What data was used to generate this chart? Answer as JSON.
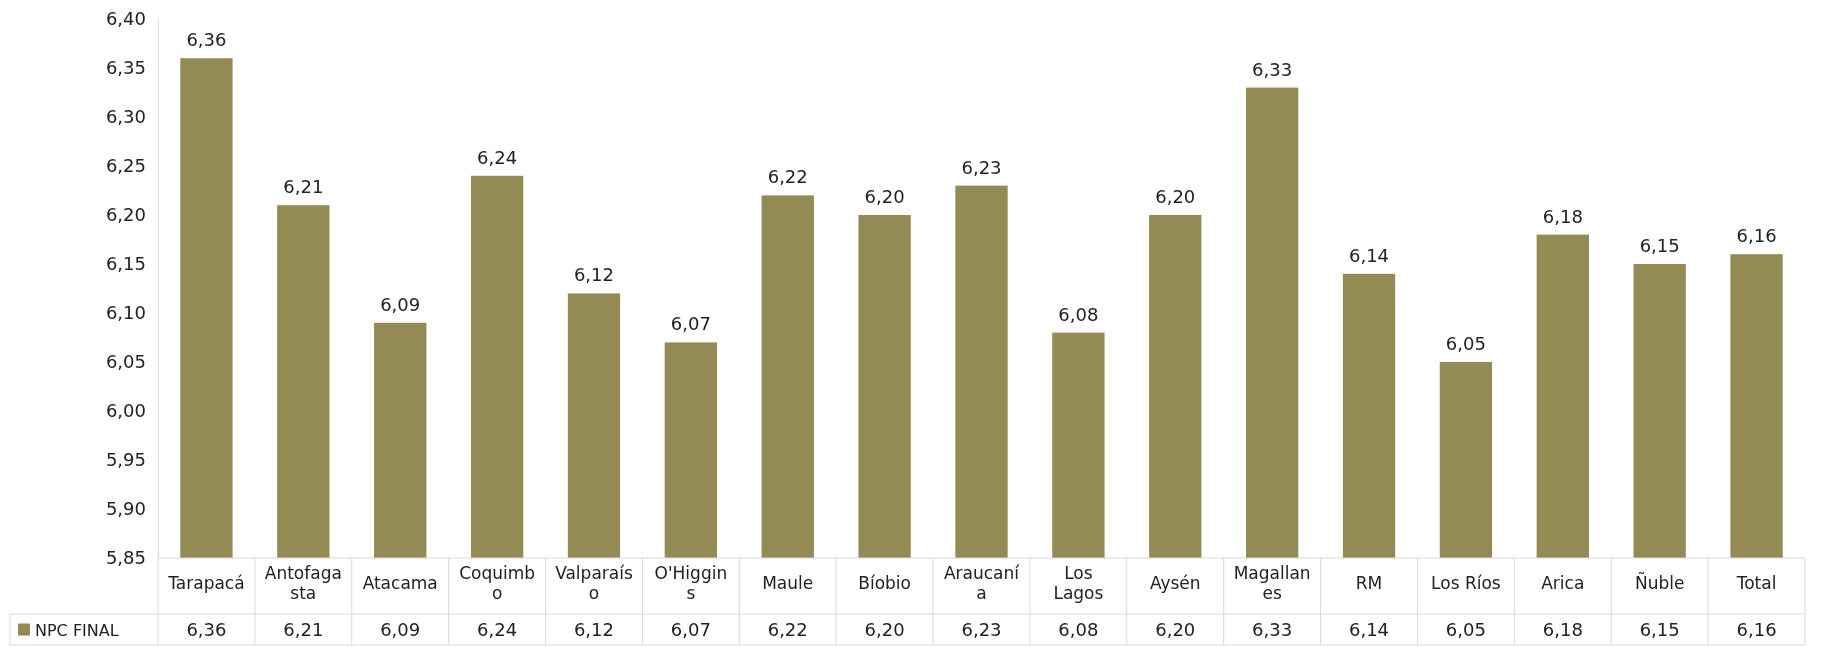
{
  "chart_data": {
    "type": "bar",
    "categories": [
      "Tarapacá",
      "Antofagasta",
      "Atacama",
      "Coquimbo",
      "Valparaíso",
      "O'Higgins",
      "Maule",
      "Bíobio",
      "Araucanía",
      "Los Lagos",
      "Aysén",
      "Magallanes",
      "RM",
      "Los Ríos",
      "Arica",
      "Ñuble",
      "Total"
    ],
    "series": [
      {
        "name": "NPC FINAL",
        "color": "#948a54",
        "values": [
          6.36,
          6.21,
          6.09,
          6.24,
          6.12,
          6.07,
          6.22,
          6.2,
          6.23,
          6.08,
          6.2,
          6.33,
          6.14,
          6.05,
          6.18,
          6.15,
          6.16
        ],
        "value_labels": [
          "6,36",
          "6,21",
          "6,09",
          "6,24",
          "6,12",
          "6,07",
          "6,22",
          "6,20",
          "6,23",
          "6,08",
          "6,20",
          "6,33",
          "6,14",
          "6,05",
          "6,18",
          "6,15",
          "6,16"
        ]
      }
    ],
    "ylim": [
      5.85,
      6.4
    ],
    "yticks": [
      {
        "value": 5.85,
        "label": "5,85"
      },
      {
        "value": 5.9,
        "label": "5,90"
      },
      {
        "value": 5.95,
        "label": "5,95"
      },
      {
        "value": 6.0,
        "label": "6,00"
      },
      {
        "value": 6.05,
        "label": "6,05"
      },
      {
        "value": 6.1,
        "label": "6,10"
      },
      {
        "value": 6.15,
        "label": "6,15"
      },
      {
        "value": 6.2,
        "label": "6,20"
      },
      {
        "value": 6.25,
        "label": "6,25"
      },
      {
        "value": 6.3,
        "label": "6,30"
      },
      {
        "value": 6.35,
        "label": "6,35"
      },
      {
        "value": 6.4,
        "label": "6,40"
      }
    ],
    "legend": "bottom",
    "grid": false
  }
}
